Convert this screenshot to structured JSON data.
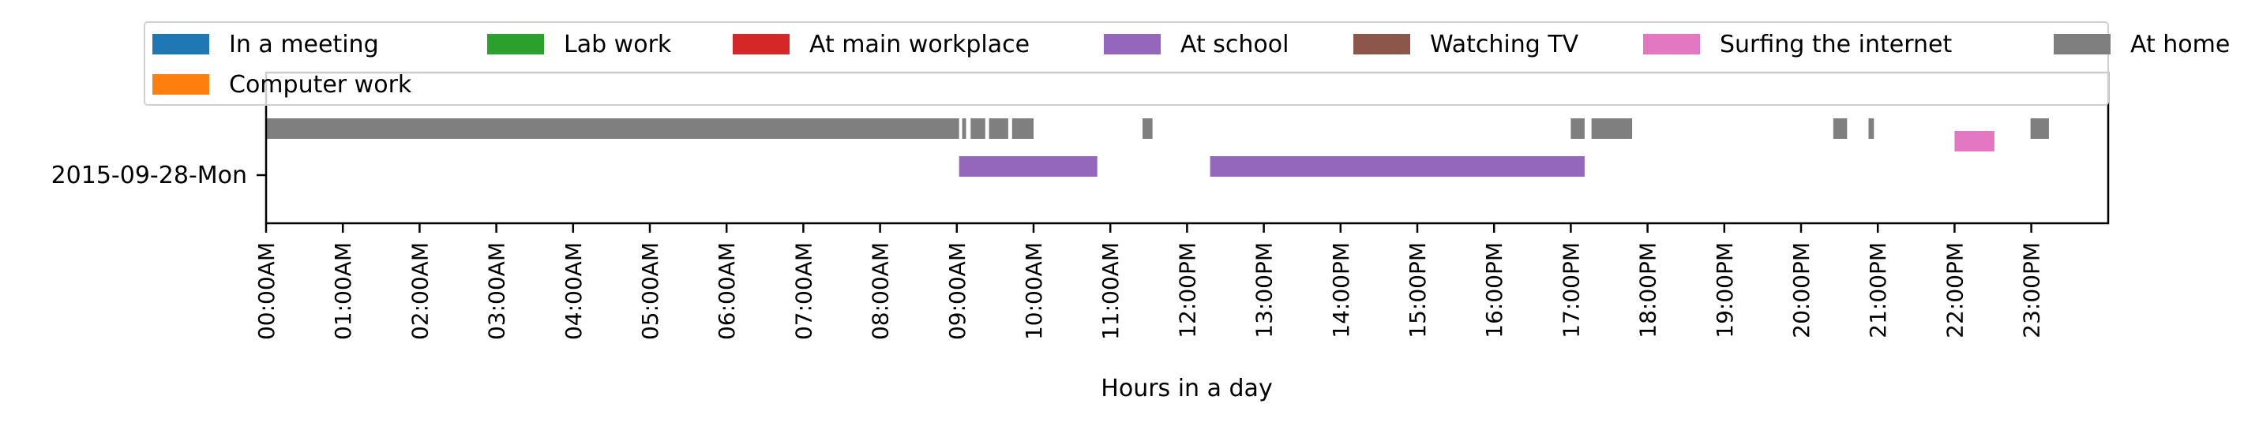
{
  "chart_data": {
    "type": "timeline",
    "xlabel": "Hours in a day",
    "xlim": [
      0,
      24
    ],
    "row_labels": [
      "2015-09-28-Mon"
    ],
    "x_ticks": [
      {
        "value": 0,
        "label": "00:00AM"
      },
      {
        "value": 1,
        "label": "01:00AM"
      },
      {
        "value": 2,
        "label": "02:00AM"
      },
      {
        "value": 3,
        "label": "03:00AM"
      },
      {
        "value": 4,
        "label": "04:00AM"
      },
      {
        "value": 5,
        "label": "05:00AM"
      },
      {
        "value": 6,
        "label": "06:00AM"
      },
      {
        "value": 7,
        "label": "07:00AM"
      },
      {
        "value": 8,
        "label": "08:00AM"
      },
      {
        "value": 9,
        "label": "09:00AM"
      },
      {
        "value": 10,
        "label": "10:00AM"
      },
      {
        "value": 11,
        "label": "11:00AM"
      },
      {
        "value": 12,
        "label": "12:00PM"
      },
      {
        "value": 13,
        "label": "13:00PM"
      },
      {
        "value": 14,
        "label": "14:00PM"
      },
      {
        "value": 15,
        "label": "15:00PM"
      },
      {
        "value": 16,
        "label": "16:00PM"
      },
      {
        "value": 17,
        "label": "17:00PM"
      },
      {
        "value": 18,
        "label": "18:00PM"
      },
      {
        "value": 19,
        "label": "19:00PM"
      },
      {
        "value": 20,
        "label": "20:00PM"
      },
      {
        "value": 21,
        "label": "21:00PM"
      },
      {
        "value": 22,
        "label": "22:00PM"
      },
      {
        "value": 23,
        "label": "23:00PM"
      }
    ],
    "legend": [
      {
        "label": "In a meeting",
        "color": "#1f77b4"
      },
      {
        "label": "Lab work",
        "color": "#2ca02c"
      },
      {
        "label": "At main workplace",
        "color": "#d62728"
      },
      {
        "label": "At school",
        "color": "#9467bd"
      },
      {
        "label": "Watching TV",
        "color": "#8c564b"
      },
      {
        "label": "Surfing the internet",
        "color": "#e377c2"
      },
      {
        "label": "At home",
        "color": "#7f7f7f"
      },
      {
        "label": "Computer work",
        "color": "#ff7f0e"
      }
    ],
    "legend_placement": "top, above plot",
    "series": [
      {
        "name": "At home",
        "color": "#7f7f7f",
        "lane": "upper",
        "intervals": [
          [
            0.0,
            9.03
          ],
          [
            9.07,
            9.12
          ],
          [
            9.18,
            9.37
          ],
          [
            9.42,
            9.67
          ],
          [
            9.72,
            10.0
          ],
          [
            11.42,
            11.55
          ],
          [
            17.0,
            17.18
          ],
          [
            17.27,
            17.8
          ],
          [
            20.42,
            20.6
          ],
          [
            20.88,
            20.95
          ],
          [
            22.99,
            23.23
          ]
        ]
      },
      {
        "name": "At school",
        "color": "#9467bd",
        "lane": "lower",
        "intervals": [
          [
            9.03,
            10.83
          ],
          [
            12.3,
            17.18
          ]
        ]
      },
      {
        "name": "Surfing the internet",
        "color": "#e377c2",
        "lane": "middle",
        "intervals": [
          [
            22.0,
            22.52
          ]
        ]
      }
    ]
  }
}
